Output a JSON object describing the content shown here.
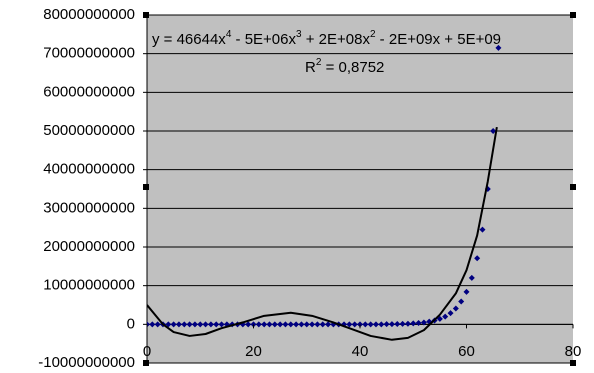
{
  "chart_data": {
    "type": "scatter",
    "xlim": [
      0,
      80
    ],
    "xticks": [
      0,
      20,
      40,
      60,
      80
    ],
    "ylim": [
      -10000000000,
      80000000000
    ],
    "yticks": [
      -10000000000,
      0,
      10000000000,
      20000000000,
      30000000000,
      40000000000,
      50000000000,
      60000000000,
      70000000000,
      80000000000
    ],
    "grid": true,
    "background": "#c0c0c0",
    "series": [
      {
        "color": "#000080",
        "x": [
          0,
          1,
          2,
          3,
          4,
          5,
          6,
          7,
          8,
          9,
          10,
          11,
          12,
          13,
          14,
          15,
          16,
          17,
          18,
          19,
          20,
          21,
          22,
          23,
          24,
          25,
          26,
          27,
          28,
          29,
          30,
          31,
          32,
          33,
          34,
          35,
          36,
          37,
          38,
          39,
          40,
          41,
          42,
          43,
          44,
          45,
          46,
          47,
          48,
          49,
          50,
          51,
          52,
          53,
          54,
          55,
          56,
          57,
          58,
          59,
          60,
          61,
          62,
          63,
          64,
          65,
          66
        ],
        "values": [
          0,
          0,
          0,
          0,
          0,
          0,
          0,
          0,
          0,
          0,
          0,
          0,
          0,
          0,
          0,
          0,
          0,
          0,
          0,
          0,
          0,
          0,
          0,
          0,
          0,
          0,
          0,
          0,
          0,
          0,
          0,
          0,
          0,
          0,
          0,
          0,
          0,
          0,
          0,
          0,
          0,
          0,
          0,
          0,
          0,
          39000000,
          56000000,
          80000000,
          110000000,
          160000000,
          240000000,
          340000000,
          480000000,
          690000000,
          980000000,
          1400000000,
          2000000000,
          2900000000,
          4100000000,
          5900000000,
          8400000000,
          12000000000,
          17100000000,
          24500000000,
          35000000000,
          50000000000,
          71500000000
        ]
      }
    ],
    "trendline": {
      "color": "#000000",
      "x": [
        0,
        3,
        5,
        8,
        11,
        14,
        18,
        22,
        27,
        31,
        35,
        38,
        42,
        46,
        49,
        52,
        55,
        58,
        60,
        62,
        64,
        65.7
      ],
      "values": [
        5000000000,
        0,
        -2000000000,
        -3000000000,
        -2500000000,
        -1000000000,
        500000000,
        2200000000,
        3000000000,
        2200000000,
        500000000,
        -1000000000,
        -3000000000,
        -4000000000,
        -3500000000,
        -1500000000,
        2500000000,
        8000000000,
        14000000000,
        23000000000,
        37000000000,
        51000000000
      ],
      "equation": [
        "y = 46644x",
        "4",
        " - 5E+06x",
        "3",
        " + 2E+08x",
        "2",
        " - 2E+09x + 5E+09"
      ],
      "r_squared": [
        "R",
        "2",
        " = 0,8752"
      ]
    }
  }
}
